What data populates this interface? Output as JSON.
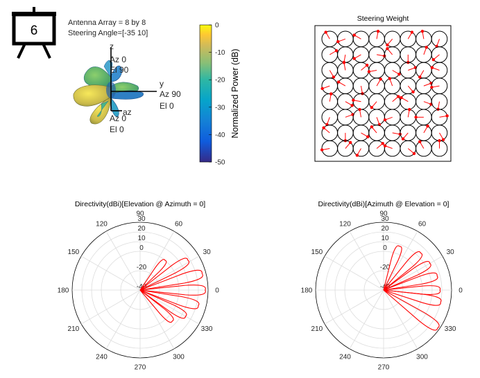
{
  "badge": {
    "number": "6"
  },
  "info": {
    "line1": "Antenna Array = 8 by 8",
    "line2": "Steering Angle=[-35 10]"
  },
  "pattern3d": {
    "axes": [
      {
        "name": "z",
        "az": "Az 0",
        "el": "El 90"
      },
      {
        "name": "y",
        "az": "Az 90",
        "el": "El 0"
      },
      {
        "name": "az",
        "az": "Az 0",
        "el": "El 0"
      }
    ]
  },
  "colorbar": {
    "label": "Normalized Power (dB)",
    "ticks": [
      "0",
      "-10",
      "-20",
      "-30",
      "-40",
      "-50"
    ],
    "min": -50,
    "max": 0
  },
  "chart_data": [
    {
      "type": "weights",
      "title": "Steering Weight",
      "rows": 8,
      "cols": 8,
      "phases_deg": [
        [
          120,
          200,
          150,
          80,
          230,
          60,
          100,
          250
        ],
        [
          30,
          260,
          210,
          350,
          130,
          270,
          70,
          220
        ],
        [
          300,
          100,
          40,
          190,
          330,
          20,
          240,
          160
        ],
        [
          200,
          150,
          280,
          60,
          110,
          310,
          20,
          190
        ],
        [
          80,
          330,
          170,
          230,
          40,
          150,
          340,
          260
        ],
        [
          250,
          20,
          100,
          290,
          200,
          80,
          180,
          10
        ],
        [
          140,
          270,
          330,
          130,
          350,
          230,
          60,
          300
        ],
        [
          190,
          50,
          240,
          40,
          160,
          320,
          120,
          90
        ]
      ]
    },
    {
      "type": "polar",
      "title": "Directivity(dBi)[Elevation @ Azimuth = 0]",
      "theta_ticks": [
        "0",
        "30",
        "60",
        "90",
        "120",
        "150",
        "180",
        "210",
        "240",
        "270",
        "300",
        "330"
      ],
      "r_ticks": [
        "-40",
        "-20",
        "0",
        "10",
        "20",
        "30"
      ],
      "lobes": [
        {
          "angle_deg": 32,
          "r_dB": 18
        },
        {
          "angle_deg": 15,
          "r_dB": 26
        },
        {
          "angle_deg": 0,
          "r_dB": 27
        },
        {
          "angle_deg": -15,
          "r_dB": 22
        },
        {
          "angle_deg": -30,
          "r_dB": 14
        },
        {
          "angle_deg": -44,
          "r_dB": 6
        },
        {
          "angle_deg": 50,
          "r_dB": 0
        }
      ]
    },
    {
      "type": "polar",
      "title": "Directivity(dBi)[Azimuth @ Elevation = 0]",
      "theta_ticks": [
        "0",
        "30",
        "60",
        "90",
        "120",
        "150",
        "180",
        "210",
        "240",
        "270",
        "300",
        "330"
      ],
      "r_ticks": [
        "-40",
        "-20",
        "0",
        "10",
        "20",
        "30"
      ],
      "lobes": [
        {
          "angle_deg": 45,
          "r_dB": 14
        },
        {
          "angle_deg": 30,
          "r_dB": 15
        },
        {
          "angle_deg": 15,
          "r_dB": 17
        },
        {
          "angle_deg": 0,
          "r_dB": 18
        },
        {
          "angle_deg": -12,
          "r_dB": 20
        },
        {
          "angle_deg": -35,
          "r_dB": 28
        },
        {
          "angle_deg": 70,
          "r_dB": 8
        }
      ]
    }
  ]
}
